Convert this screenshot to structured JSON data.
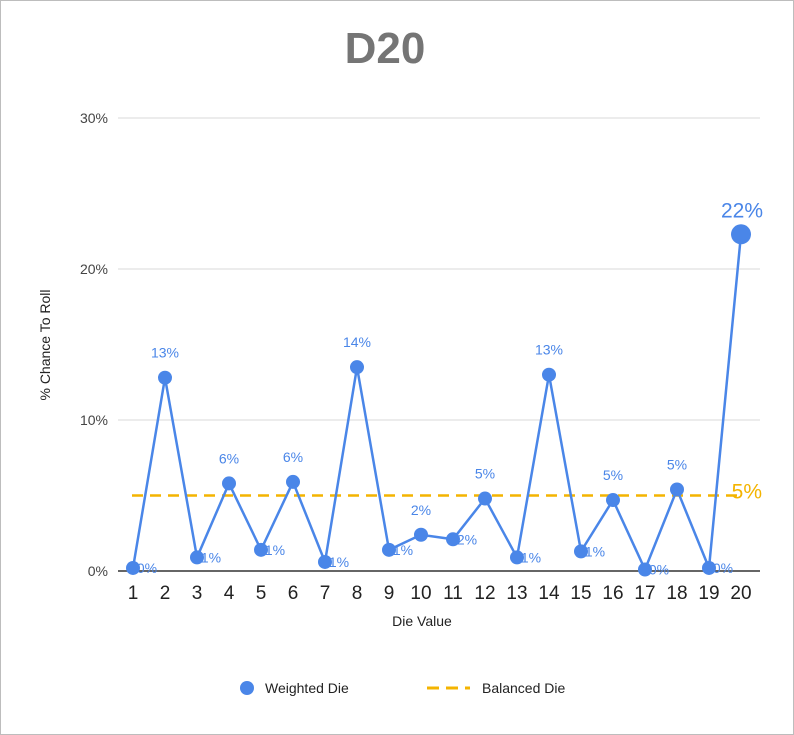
{
  "chart_data": {
    "type": "line",
    "title": "D20",
    "xlabel": "Die Value",
    "ylabel": "% Chance To Roll",
    "ylim": [
      0,
      30
    ],
    "y_ticks": [
      "0%",
      "10%",
      "20%",
      "30%"
    ],
    "grid": true,
    "legend_position": "bottom",
    "categories": [
      "1",
      "2",
      "3",
      "4",
      "5",
      "6",
      "7",
      "8",
      "9",
      "10",
      "11",
      "12",
      "13",
      "14",
      "15",
      "16",
      "17",
      "18",
      "19",
      "20"
    ],
    "series": [
      {
        "name": "Weighted Die",
        "color": "#4a86e8",
        "marker": "circle",
        "values": [
          0.2,
          12.8,
          0.9,
          5.8,
          1.4,
          5.9,
          0.6,
          13.5,
          1.4,
          2.4,
          2.1,
          4.8,
          0.9,
          13.0,
          1.3,
          4.7,
          0.1,
          5.4,
          0.2,
          22.3
        ],
        "labels": [
          "0%",
          "13%",
          "1%",
          "6%",
          "1%",
          "6%",
          "1%",
          "14%",
          "1%",
          "2%",
          "2%",
          "5%",
          "1%",
          "13%",
          "1%",
          "5%",
          "0%",
          "5%",
          "0%",
          "22%"
        ]
      },
      {
        "name": "Balanced Die",
        "color": "#f4b400",
        "style": "dashed",
        "value": 5,
        "label": "5%"
      }
    ]
  }
}
